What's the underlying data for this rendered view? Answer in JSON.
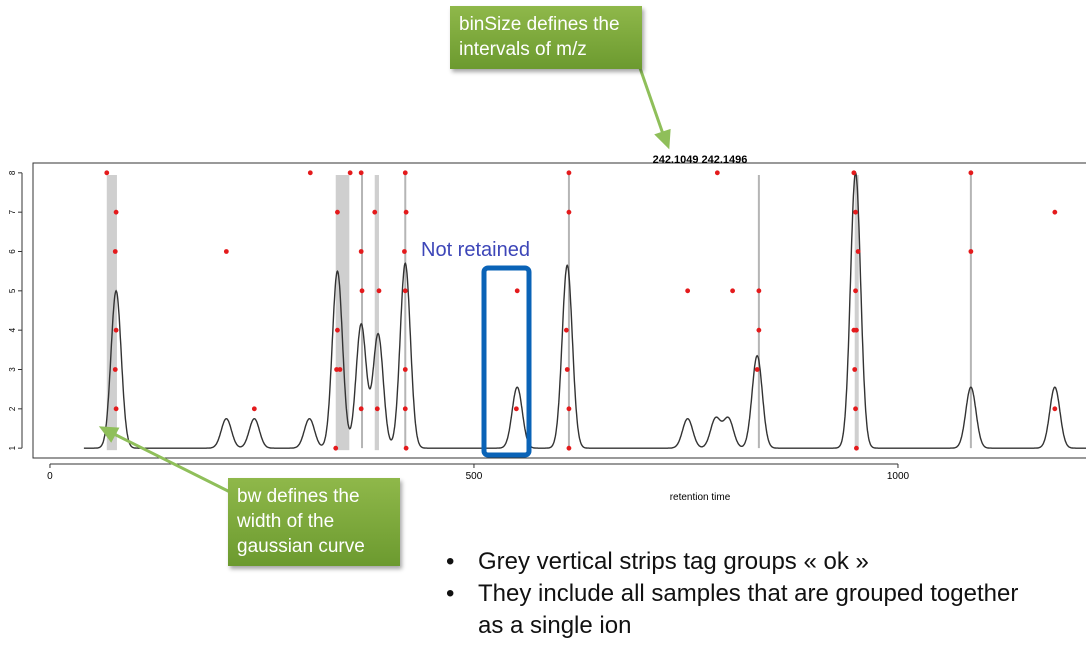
{
  "chart_data": {
    "type": "line",
    "title": "242.1049 242.1496",
    "xlabel": "retention time",
    "ylabel": "",
    "xlim": [
      -20,
      1230
    ],
    "ylim": [
      0.75,
      8.25
    ],
    "x_ticks": [
      0,
      500,
      1000
    ],
    "y_ticks": [
      1,
      2,
      3,
      4,
      5,
      6,
      7,
      8
    ],
    "grid": false,
    "density_peaks": [
      {
        "center": 78,
        "height": 5.0,
        "sd": 6
      },
      {
        "center": 208,
        "height": 1.75,
        "sd": 6
      },
      {
        "center": 241,
        "height": 1.75,
        "sd": 6
      },
      {
        "center": 306,
        "height": 1.75,
        "sd": 6
      },
      {
        "center": 339,
        "height": 5.5,
        "sd": 6
      },
      {
        "center": 367,
        "height": 4.15,
        "sd": 6
      },
      {
        "center": 387,
        "height": 3.9,
        "sd": 6
      },
      {
        "center": 419,
        "height": 5.7,
        "sd": 6
      },
      {
        "center": 551,
        "height": 2.55,
        "sd": 6
      },
      {
        "center": 610,
        "height": 5.65,
        "sd": 6
      },
      {
        "center": 752,
        "height": 1.75,
        "sd": 6
      },
      {
        "center": 785,
        "height": 1.75,
        "sd": 6
      },
      {
        "center": 800,
        "height": 1.75,
        "sd": 6
      },
      {
        "center": 834,
        "height": 3.35,
        "sd": 6
      },
      {
        "center": 950,
        "height": 8.0,
        "sd": 6
      },
      {
        "center": 1086,
        "height": 2.55,
        "sd": 6
      },
      {
        "center": 1185,
        "height": 2.55,
        "sd": 6
      }
    ],
    "density_x_range": [
      40,
      1230
    ],
    "group_strips": [
      {
        "from": 67,
        "to": 79
      },
      {
        "from": 337,
        "to": 353
      },
      {
        "from": 383,
        "to": 388
      },
      {
        "from": 949,
        "to": 953
      }
    ],
    "group_lines": [
      368,
      419,
      612,
      836,
      1086
    ],
    "points": [
      {
        "x": 67,
        "y": 8
      },
      {
        "x": 78,
        "y": 7
      },
      {
        "x": 77,
        "y": 6
      },
      {
        "x": 78,
        "y": 4
      },
      {
        "x": 77,
        "y": 3
      },
      {
        "x": 78,
        "y": 2
      },
      {
        "x": 208,
        "y": 6
      },
      {
        "x": 241,
        "y": 2
      },
      {
        "x": 307,
        "y": 8
      },
      {
        "x": 337,
        "y": 1
      },
      {
        "x": 339,
        "y": 7
      },
      {
        "x": 339,
        "y": 4
      },
      {
        "x": 338,
        "y": 3
      },
      {
        "x": 342,
        "y": 3
      },
      {
        "x": 354,
        "y": 8
      },
      {
        "x": 367,
        "y": 8
      },
      {
        "x": 367,
        "y": 6
      },
      {
        "x": 368,
        "y": 5
      },
      {
        "x": 367,
        "y": 2
      },
      {
        "x": 383,
        "y": 7
      },
      {
        "x": 388,
        "y": 5
      },
      {
        "x": 386,
        "y": 2
      },
      {
        "x": 419,
        "y": 8
      },
      {
        "x": 420,
        "y": 7
      },
      {
        "x": 418,
        "y": 6
      },
      {
        "x": 419,
        "y": 5
      },
      {
        "x": 419,
        "y": 3
      },
      {
        "x": 419,
        "y": 2
      },
      {
        "x": 420,
        "y": 1
      },
      {
        "x": 551,
        "y": 5
      },
      {
        "x": 550,
        "y": 2
      },
      {
        "x": 612,
        "y": 8
      },
      {
        "x": 612,
        "y": 7
      },
      {
        "x": 609,
        "y": 4
      },
      {
        "x": 610,
        "y": 3
      },
      {
        "x": 612,
        "y": 2
      },
      {
        "x": 612,
        "y": 1
      },
      {
        "x": 752,
        "y": 5
      },
      {
        "x": 787,
        "y": 8
      },
      {
        "x": 805,
        "y": 5
      },
      {
        "x": 836,
        "y": 5
      },
      {
        "x": 836,
        "y": 4
      },
      {
        "x": 834,
        "y": 3
      },
      {
        "x": 948,
        "y": 8
      },
      {
        "x": 950,
        "y": 7
      },
      {
        "x": 953,
        "y": 6
      },
      {
        "x": 950,
        "y": 5
      },
      {
        "x": 948,
        "y": 4
      },
      {
        "x": 951,
        "y": 4
      },
      {
        "x": 949,
        "y": 3
      },
      {
        "x": 950,
        "y": 2
      },
      {
        "x": 951,
        "y": 1
      },
      {
        "x": 1086,
        "y": 8
      },
      {
        "x": 1086,
        "y": 6
      },
      {
        "x": 1185,
        "y": 7
      },
      {
        "x": 1185,
        "y": 2
      }
    ],
    "colors": {
      "points": "#e41a1c",
      "density": "#333333",
      "strip": "#cfcfcf",
      "group_line": "#b5b5b5"
    }
  },
  "annotations": {
    "binsize_callout": "binSize defines the intervals of m/z",
    "bw_callout": "bw defines the width of the gaussian curve",
    "not_retained": "Not retained"
  },
  "bullets": {
    "marker": "•",
    "items": [
      "Grey vertical strips tag groups « ok »",
      "They include all samples that are grouped together as a single ion"
    ]
  },
  "colors": {
    "callout_green": "#7aa83a",
    "highlight_blue": "#0a63b7",
    "not_retained_text": "#3d46b8",
    "arrow_green": "#8fbf5a"
  }
}
